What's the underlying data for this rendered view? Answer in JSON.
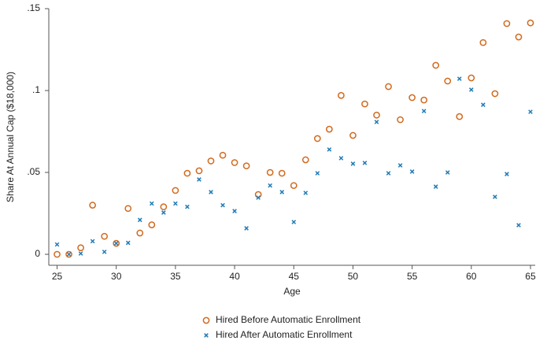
{
  "chart_data": {
    "type": "scatter",
    "y_label": "Share At Annual Cap ($18,000)",
    "x_label": "Age",
    "x": [
      25,
      26,
      27,
      28,
      29,
      30,
      31,
      32,
      33,
      34,
      35,
      36,
      37,
      38,
      39,
      40,
      41,
      42,
      43,
      44,
      45,
      46,
      47,
      48,
      49,
      50,
      51,
      52,
      53,
      54,
      55,
      56,
      57,
      58,
      59,
      60,
      61,
      62,
      63,
      64,
      65
    ],
    "series": [
      {
        "name": "Hired Before Automatic Enrollment",
        "color": "#d2691e",
        "marker": "circle",
        "values": [
          0,
          0,
          0.004,
          0.03,
          0.011,
          0.0067,
          0.028,
          0.013,
          0.018,
          0.029,
          0.039,
          0.0495,
          0.051,
          0.057,
          0.0605,
          0.056,
          0.054,
          0.0365,
          0.05,
          0.0495,
          0.042,
          0.0577,
          0.0707,
          0.0764,
          0.097,
          0.0726,
          0.0918,
          0.085,
          0.1024,
          0.0822,
          0.0957,
          0.0942,
          0.1154,
          0.1058,
          0.0841,
          0.1077,
          0.1293,
          0.0981,
          0.1409,
          0.1327,
          0.1413
        ]
      },
      {
        "name": "Hired After Automatic Enrollment",
        "color": "#1f7bb6",
        "marker": "x",
        "values": [
          0.006,
          0,
          0.0005,
          0.008,
          0.0015,
          0.0067,
          0.007,
          0.021,
          0.031,
          0.0255,
          0.031,
          0.029,
          0.0457,
          0.038,
          0.03,
          0.0264,
          0.0159,
          0.0346,
          0.042,
          0.038,
          0.0197,
          0.0375,
          0.0495,
          0.064,
          0.0587,
          0.0553,
          0.0558,
          0.0808,
          0.0495,
          0.0543,
          0.0505,
          0.0875,
          0.0413,
          0.05,
          0.1072,
          0.1005,
          0.0913,
          0.0351,
          0.049,
          0.0178,
          0.087
        ]
      }
    ],
    "xlim": [
      24.3,
      65.4
    ],
    "ylim": [
      -0.0067,
      0.15
    ],
    "xticks": [
      25,
      30,
      35,
      40,
      45,
      50,
      55,
      60,
      65
    ],
    "yticks": [
      0,
      {
        "value": 0.05,
        "label": ".05"
      },
      {
        "value": 0.1,
        "label": ".1"
      },
      {
        "value": 0.15,
        "label": ".15"
      }
    ],
    "grid": false,
    "legend_position": "bottom"
  }
}
